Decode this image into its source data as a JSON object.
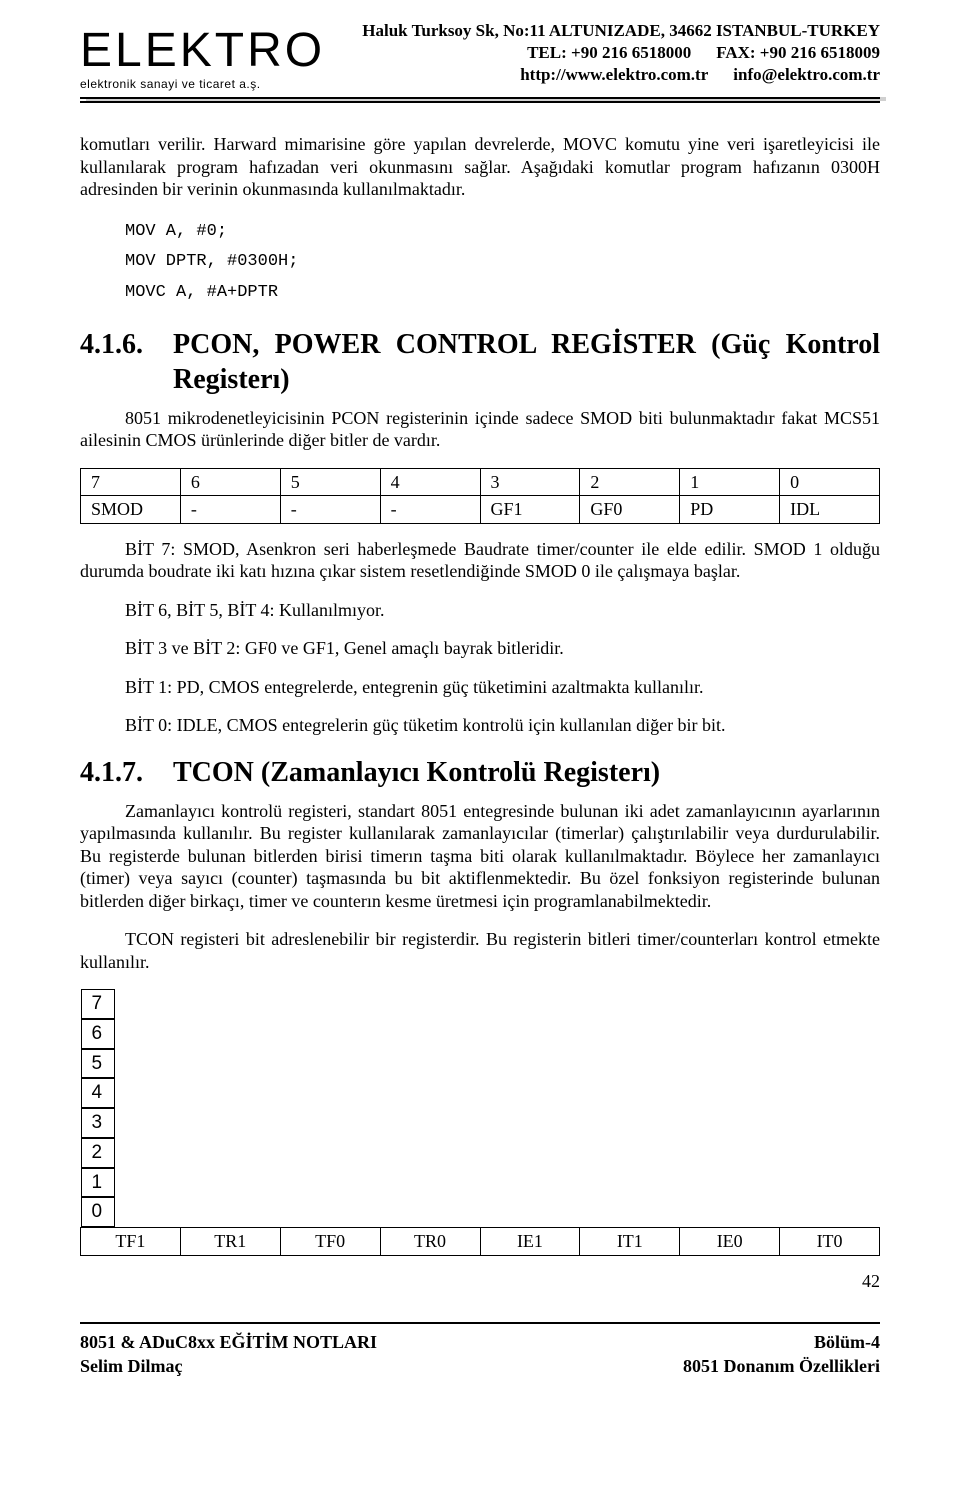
{
  "header": {
    "logo": {
      "main": "ELEKTRO",
      "sub": "elektronik sanayi ve ticaret a.ş."
    },
    "address": "Haluk Turksoy Sk, No:11 ALTUNIZADE, 34662  ISTANBUL-TURKEY",
    "tel_label": "TEL: +90 216 6518000",
    "fax_label": "FAX: +90 216 6518009",
    "web": "http://www.elektro.com.tr",
    "email": "info@elektro.com.tr"
  },
  "para1": "komutları verilir. Harward mimarisine göre yapılan devrelerde, MOVC komutu yine veri işaretleyicisi ile kullanılarak program hafızadan veri okunmasını sağlar. Aşağıdaki komutlar program hafızanın 0300H adresinden bir verinin okunmasında kullanılmaktadır.",
  "code": {
    "l1": "MOV A, #0;",
    "l2": "MOV DPTR, #0300H;",
    "l3": "MOVC A, #A+DPTR"
  },
  "sec416": {
    "num": "4.1.6.",
    "title": "PCON, POWER CONTROL REGİSTER (Güç Kontrol Registerı)",
    "intro": "8051 mikrodenetleyicisinin PCON registerinin içinde sadece SMOD biti bulunmaktadır fakat MCS51 ailesinin CMOS ürünlerinde diğer  bitler de vardır.",
    "table": {
      "row1": [
        "7",
        "6",
        "5",
        "4",
        "3",
        "2",
        "1",
        "0"
      ],
      "row2": [
        "SMOD",
        "-",
        "-",
        "-",
        "GF1",
        "GF0",
        "PD",
        "IDL"
      ]
    },
    "bit7": "BİT 7: SMOD, Asenkron seri haberleşmede Baudrate timer/counter ile elde edilir. SMOD 1 olduğu durumda boudrate iki katı hızına çıkar sistem resetlendiğinde SMOD 0 ile çalışmaya başlar.",
    "bit654": "BİT 6, BİT 5, BİT 4: Kullanılmıyor.",
    "bit32": "BİT 3 ve BİT 2: GF0 ve GF1, Genel amaçlı bayrak bitleridir.",
    "bit1": "BİT 1: PD, CMOS entegrelerde, entegrenin güç tüketimini azaltmakta kullanılır.",
    "bit0": "BİT 0: IDLE, CMOS entegrelerin güç tüketim kontrolü için kullanılan diğer bir bit."
  },
  "sec417": {
    "num": "4.1.7.",
    "title": "TCON  (Zamanlayıcı Kontrolü Registerı)",
    "p1": "Zamanlayıcı kontrolü registeri, standart 8051 entegresinde bulunan iki adet zamanlayıcının ayarlarının yapılmasında kullanılır.  Bu register kullanılarak zamanlayıcılar (timerlar) çalıştırılabilir veya durdurulabilir. Bu registerde bulunan bitlerden birisi timerın taşma biti olarak kullanılmaktadır. Böylece her zamanlayıcı (timer) veya sayıcı (counter) taşmasında bu bit aktiflenmektedir. Bu  özel fonksiyon registerinde bulunan bitlerden diğer birkaçı, timer ve counterın kesme üretmesi için programlanabilmektedir.",
    "p2": "TCON registeri  bit adreslenebilir bir registerdir. Bu registerin bitleri timer/counterları kontrol etmekte kullanılır.",
    "table": {
      "row1": [
        "7",
        "6",
        "5",
        "4",
        "3",
        "2",
        "1",
        "0"
      ],
      "row2": [
        "TF1",
        "TR1",
        "TF0",
        "TR0",
        "IE1",
        "IT1",
        "IE0",
        "IT0"
      ]
    }
  },
  "pagenum": "42",
  "footer": {
    "left1": "8051 & ADuC8xx EĞİTİM NOTLARI",
    "left2": "Selim Dilmaç",
    "right1": "Bölüm-4",
    "right2": "8051 Donanım Özellikleri"
  }
}
